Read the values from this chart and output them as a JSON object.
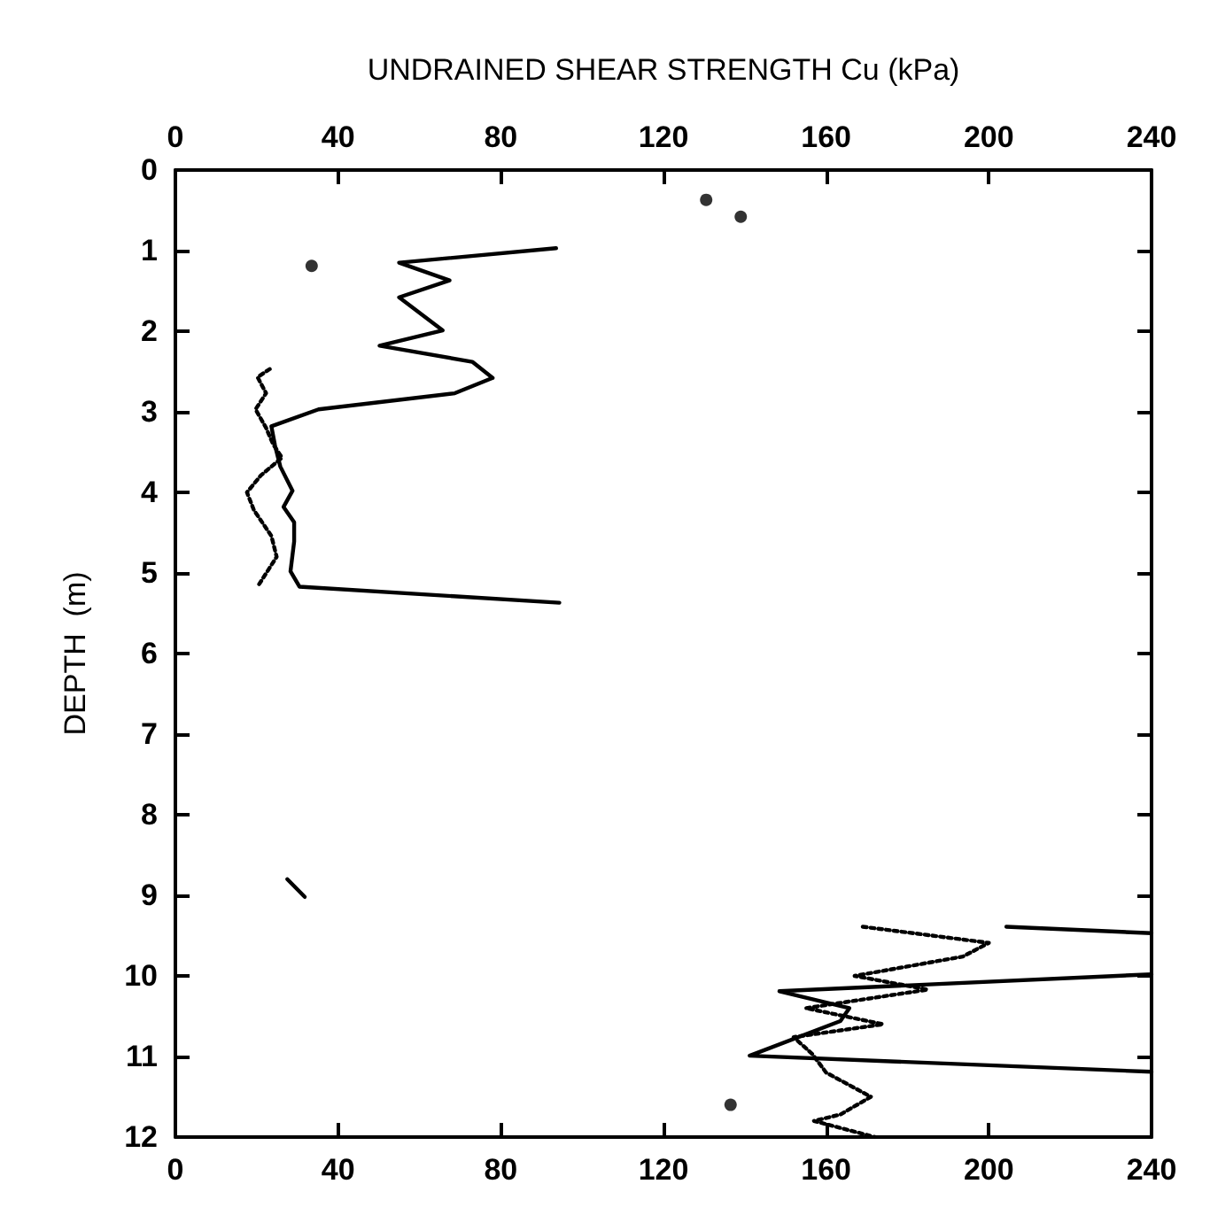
{
  "chart_data": {
    "type": "line",
    "x2label": "UNDRAINED SHEAR STRENGTH Cu (kPa)",
    "ylabel": "DEPTH  (m)",
    "xlim": [
      0,
      240
    ],
    "xticks": [
      0,
      40,
      80,
      120,
      160,
      200,
      240
    ],
    "x2lim": [
      0,
      240
    ],
    "x2ticks": [
      0,
      40,
      80,
      120,
      160,
      200,
      240
    ],
    "ylim": [
      12,
      0
    ],
    "yticks": [
      0,
      1,
      2,
      3,
      4,
      5,
      6,
      7,
      8,
      9,
      10,
      11,
      12
    ],
    "grid": false,
    "marker": "none",
    "series": [
      {
        "color": "#000000",
        "line_style": "solid",
        "x": [
          93.6,
          55,
          67.4,
          55,
          65.7,
          50.2,
          73,
          78,
          68.7,
          35.2,
          23.6,
          24.5,
          25.8,
          28.8,
          26.6,
          29.2,
          29.2,
          28.3,
          30.5,
          94.4
        ],
        "values": [
          0.97,
          1.15,
          1.37,
          1.58,
          1.99,
          2.18,
          2.38,
          2.58,
          2.77,
          2.97,
          3.18,
          3.42,
          3.68,
          3.98,
          4.18,
          4.37,
          4.61,
          4.98,
          5.17,
          5.37
        ]
      },
      {
        "color": "#000000",
        "line_style": "dotted",
        "x": [
          23.2,
          20.2,
          22.3,
          19.7,
          22.3,
          24,
          26.2,
          21,
          17.6,
          19.3,
          23.6,
          24.9,
          20.2
        ],
        "values": [
          2.47,
          2.57,
          2.77,
          2.97,
          3.2,
          3.4,
          3.57,
          3.79,
          4.0,
          4.22,
          4.54,
          4.8,
          5.17
        ]
      },
      {
        "color": "#000000",
        "line_style": "solid",
        "x": [
          27.5,
          31.8
        ],
        "values": [
          8.8,
          9.02
        ]
      },
      {
        "color": "#000000",
        "line_style": "solid",
        "x": [
          204.3,
          240
        ],
        "values": [
          9.39,
          9.47
        ]
      },
      {
        "color": "#000000",
        "line_style": "solid",
        "x": [
          240,
          148.5,
          165.7,
          163.5,
          141.2,
          240
        ],
        "values": [
          9.98,
          10.19,
          10.4,
          10.56,
          10.99,
          11.19
        ]
      },
      {
        "color": "#000000",
        "line_style": "dotted",
        "x": [
          169,
          200,
          193.6,
          167,
          185,
          155,
          174,
          152,
          156.6,
          160,
          171,
          163.5,
          157,
          172
        ],
        "values": [
          9.39,
          9.59,
          9.76,
          10.0,
          10.17,
          10.4,
          10.6,
          10.76,
          10.97,
          11.2,
          11.5,
          11.72,
          11.8,
          12.0
        ]
      },
      {
        "type": "scatter",
        "marker": "circle",
        "color": "#000000",
        "x": [
          130.5,
          139,
          33.5,
          136.5
        ],
        "values": [
          0.37,
          0.58,
          1.19,
          11.6
        ]
      }
    ]
  }
}
